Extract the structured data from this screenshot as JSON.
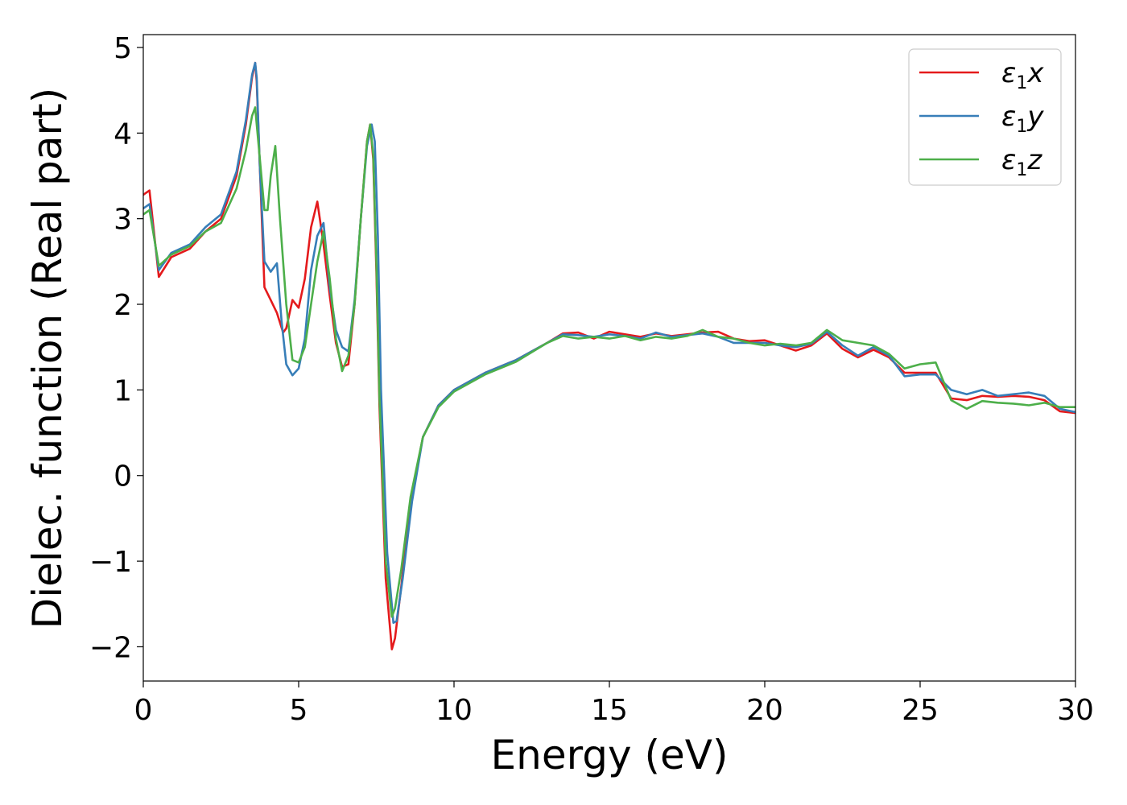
{
  "chart_data": {
    "type": "line",
    "xlabel": "Energy (eV)",
    "ylabel": "Dielec. function (Real part)",
    "xlim": [
      0,
      30
    ],
    "ylim": [
      -2.4,
      5.15
    ],
    "xticks": [
      0,
      5,
      10,
      15,
      20,
      25,
      30
    ],
    "yticks": [
      -2,
      -1,
      0,
      1,
      2,
      3,
      4,
      5
    ],
    "xtick_labels": [
      "0",
      "5",
      "10",
      "15",
      "20",
      "25",
      "30"
    ],
    "ytick_labels": [
      "−2",
      "−1",
      "0",
      "1",
      "2",
      "3",
      "4",
      "5"
    ],
    "grid": false,
    "legend_position": "top-right",
    "series": [
      {
        "name": "ε₁x",
        "symbol": "ε",
        "subscript": "1",
        "component": "x",
        "color": "#e41a1c",
        "x": [
          0.0,
          0.2,
          0.5,
          0.9,
          1.5,
          2.0,
          2.5,
          3.0,
          3.3,
          3.5,
          3.6,
          3.65,
          3.75,
          3.9,
          4.1,
          4.3,
          4.5,
          4.6,
          4.8,
          5.0,
          5.2,
          5.4,
          5.6,
          5.8,
          6.0,
          6.2,
          6.4,
          6.6,
          6.8,
          7.0,
          7.2,
          7.3,
          7.4,
          7.5,
          7.6,
          7.8,
          8.0,
          8.1,
          8.3,
          8.6,
          9.0,
          9.5,
          10.0,
          11.0,
          12.0,
          13.0,
          13.5,
          14.0,
          14.5,
          15.0,
          15.5,
          16.0,
          16.5,
          17.0,
          17.5,
          18.0,
          18.5,
          19.0,
          19.5,
          20.0,
          20.5,
          21.0,
          21.5,
          22.0,
          22.5,
          23.0,
          23.5,
          24.0,
          24.5,
          25.0,
          25.5,
          26.0,
          26.5,
          27.0,
          27.5,
          28.0,
          28.5,
          29.0,
          29.5,
          30.0
        ],
        "y": [
          3.28,
          3.33,
          2.32,
          2.55,
          2.65,
          2.85,
          3.0,
          3.5,
          4.1,
          4.65,
          4.82,
          4.6,
          3.6,
          2.2,
          2.05,
          1.9,
          1.67,
          1.72,
          2.05,
          1.96,
          2.3,
          2.9,
          3.2,
          2.7,
          2.1,
          1.55,
          1.27,
          1.3,
          2.0,
          3.0,
          3.9,
          4.1,
          3.7,
          2.4,
          0.8,
          -1.2,
          -2.03,
          -1.9,
          -1.3,
          -0.3,
          0.45,
          0.82,
          1.0,
          1.2,
          1.35,
          1.55,
          1.66,
          1.67,
          1.6,
          1.68,
          1.65,
          1.62,
          1.66,
          1.63,
          1.65,
          1.67,
          1.68,
          1.6,
          1.57,
          1.58,
          1.52,
          1.46,
          1.52,
          1.66,
          1.48,
          1.38,
          1.47,
          1.38,
          1.2,
          1.2,
          1.2,
          0.9,
          0.88,
          0.93,
          0.92,
          0.93,
          0.92,
          0.88,
          0.75,
          0.73
        ]
      },
      {
        "name": "ε₁y",
        "symbol": "ε",
        "subscript": "1",
        "component": "y",
        "color": "#377eb8",
        "x": [
          0.0,
          0.2,
          0.5,
          0.9,
          1.5,
          2.0,
          2.5,
          3.0,
          3.3,
          3.5,
          3.6,
          3.65,
          3.75,
          3.9,
          4.1,
          4.3,
          4.45,
          4.6,
          4.8,
          5.0,
          5.2,
          5.4,
          5.6,
          5.8,
          6.0,
          6.2,
          6.4,
          6.6,
          6.8,
          7.0,
          7.2,
          7.35,
          7.45,
          7.55,
          7.65,
          7.85,
          8.05,
          8.15,
          8.35,
          8.65,
          9.0,
          9.5,
          10.0,
          11.0,
          12.0,
          13.0,
          13.5,
          14.0,
          14.5,
          15.0,
          15.5,
          16.0,
          16.5,
          17.0,
          17.5,
          18.0,
          18.5,
          19.0,
          19.5,
          20.0,
          20.5,
          21.0,
          21.5,
          22.0,
          22.5,
          23.0,
          23.5,
          24.0,
          24.5,
          25.0,
          25.5,
          26.0,
          26.5,
          27.0,
          27.5,
          28.0,
          28.5,
          29.0,
          29.5,
          30.0
        ],
        "y": [
          3.12,
          3.17,
          2.4,
          2.6,
          2.7,
          2.9,
          3.05,
          3.55,
          4.15,
          4.68,
          4.82,
          4.65,
          3.6,
          2.5,
          2.38,
          2.48,
          1.8,
          1.3,
          1.17,
          1.25,
          1.6,
          2.4,
          2.8,
          2.95,
          2.2,
          1.7,
          1.5,
          1.45,
          2.05,
          3.0,
          3.85,
          4.1,
          3.9,
          2.8,
          1.0,
          -0.9,
          -1.72,
          -1.7,
          -1.2,
          -0.3,
          0.45,
          0.82,
          1.0,
          1.2,
          1.35,
          1.55,
          1.65,
          1.64,
          1.62,
          1.65,
          1.63,
          1.6,
          1.67,
          1.62,
          1.64,
          1.66,
          1.62,
          1.55,
          1.55,
          1.55,
          1.52,
          1.5,
          1.54,
          1.68,
          1.52,
          1.4,
          1.5,
          1.4,
          1.16,
          1.18,
          1.18,
          1.0,
          0.95,
          1.0,
          0.93,
          0.95,
          0.97,
          0.93,
          0.78,
          0.74
        ]
      },
      {
        "name": "ε₁z",
        "symbol": "ε",
        "subscript": "1",
        "component": "z",
        "color": "#4daf4a",
        "x": [
          0.0,
          0.2,
          0.5,
          0.9,
          1.5,
          2.0,
          2.5,
          3.0,
          3.3,
          3.5,
          3.6,
          3.65,
          3.75,
          3.9,
          4.0,
          4.1,
          4.25,
          4.4,
          4.6,
          4.8,
          5.0,
          5.2,
          5.4,
          5.6,
          5.8,
          6.0,
          6.2,
          6.4,
          6.6,
          6.8,
          7.0,
          7.2,
          7.3,
          7.4,
          7.5,
          7.6,
          7.8,
          8.0,
          8.1,
          8.3,
          8.6,
          9.0,
          9.5,
          10.0,
          11.0,
          12.0,
          13.0,
          13.5,
          14.0,
          14.5,
          15.0,
          15.5,
          16.0,
          16.5,
          17.0,
          17.5,
          18.0,
          18.5,
          19.0,
          19.5,
          20.0,
          20.5,
          21.0,
          21.5,
          22.0,
          22.5,
          23.0,
          23.5,
          24.0,
          24.5,
          25.0,
          25.5,
          26.0,
          26.5,
          27.0,
          27.5,
          28.0,
          28.5,
          29.0,
          29.5,
          30.0
        ],
        "y": [
          3.05,
          3.1,
          2.45,
          2.58,
          2.68,
          2.85,
          2.95,
          3.35,
          3.8,
          4.2,
          4.3,
          4.1,
          3.7,
          3.1,
          3.1,
          3.5,
          3.85,
          3.0,
          2.0,
          1.35,
          1.32,
          1.5,
          2.0,
          2.5,
          2.85,
          2.3,
          1.6,
          1.22,
          1.4,
          2.0,
          3.0,
          3.9,
          4.1,
          3.75,
          2.5,
          0.9,
          -1.0,
          -1.65,
          -1.55,
          -1.1,
          -0.25,
          0.45,
          0.8,
          0.98,
          1.18,
          1.33,
          1.55,
          1.63,
          1.6,
          1.62,
          1.6,
          1.63,
          1.58,
          1.62,
          1.6,
          1.63,
          1.7,
          1.62,
          1.6,
          1.55,
          1.52,
          1.54,
          1.52,
          1.55,
          1.7,
          1.58,
          1.55,
          1.52,
          1.42,
          1.25,
          1.3,
          1.32,
          0.88,
          0.78,
          0.87,
          0.85,
          0.84,
          0.82,
          0.85,
          0.8,
          0.8
        ]
      }
    ]
  }
}
